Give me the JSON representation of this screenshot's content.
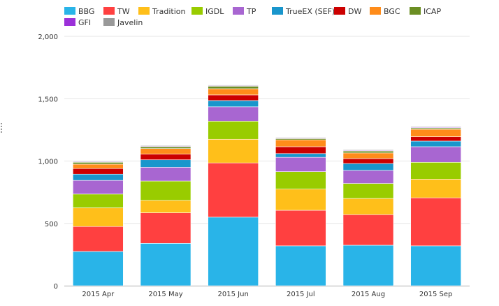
{
  "chart_data": {
    "type": "bar",
    "stacked": true,
    "categories": [
      "2015 Apr",
      "2015 May",
      "2015 Jun",
      "2015 Jul",
      "2015 Aug",
      "2015 Sep"
    ],
    "y_ticks": [
      "0",
      "500",
      "1,000",
      "1,500",
      "2,000"
    ],
    "ylim": [
      0,
      2000
    ],
    "grid": true,
    "legend_position": "top-left",
    "series": [
      {
        "name": "BBG",
        "color": "#29b4e8",
        "values": [
          275,
          340,
          550,
          320,
          325,
          320
        ]
      },
      {
        "name": "TW",
        "color": "#ff4040",
        "values": [
          200,
          245,
          435,
          285,
          245,
          385
        ]
      },
      {
        "name": "Tradition",
        "color": "#ffbf1a",
        "values": [
          150,
          100,
          190,
          170,
          130,
          150
        ]
      },
      {
        "name": "IGDL",
        "color": "#99cc00",
        "values": [
          110,
          155,
          145,
          140,
          120,
          135
        ]
      },
      {
        "name": "TP",
        "color": "#a866d1",
        "values": [
          110,
          110,
          115,
          115,
          105,
          125
        ]
      },
      {
        "name": "TrueEX (SEF)",
        "color": "#1996cc",
        "values": [
          50,
          60,
          50,
          30,
          55,
          45
        ]
      },
      {
        "name": "DW",
        "color": "#cc0000",
        "values": [
          45,
          45,
          45,
          55,
          40,
          35
        ]
      },
      {
        "name": "BGC",
        "color": "#ff8c1a",
        "values": [
          35,
          45,
          50,
          55,
          45,
          60
        ]
      },
      {
        "name": "ICAP",
        "color": "#6b8e23",
        "values": [
          15,
          15,
          20,
          10,
          15,
          10
        ]
      },
      {
        "name": "GFI",
        "color": "#9b30d9",
        "values": [
          5,
          5,
          5,
          5,
          5,
          5
        ]
      },
      {
        "name": "Javelin",
        "color": "#999999",
        "values": [
          5,
          5,
          5,
          5,
          5,
          5
        ]
      }
    ]
  }
}
